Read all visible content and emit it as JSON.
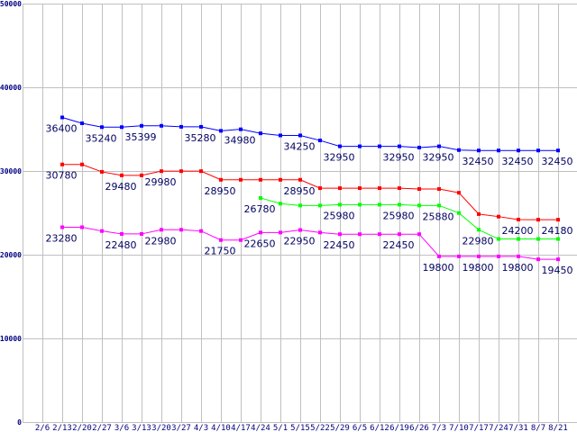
{
  "chart_data": {
    "type": "line",
    "title": "",
    "xlabel": "",
    "ylabel": "",
    "ylim": [
      0,
      50000
    ],
    "yticks": [
      "0",
      "10000",
      "20000",
      "30000",
      "40000",
      "50000"
    ],
    "ytick_values": [
      0,
      10000,
      20000,
      30000,
      40000,
      50000
    ],
    "grid": true,
    "categories": [
      "2/6",
      "2/13",
      "2/20",
      "2/27",
      "3/6",
      "3/13",
      "3/20",
      "3/27",
      "4/3",
      "4/10",
      "4/17",
      "4/24",
      "5/1",
      "5/15",
      "5/22",
      "5/29",
      "6/5",
      "6/12",
      "6/19",
      "6/26",
      "7/3",
      "7/10",
      "7/17",
      "7/24",
      "7/31",
      "8/7",
      "8/21"
    ],
    "series": [
      {
        "name": "blue",
        "color": "#0000ff",
        "values": [
          null,
          36400,
          35700,
          35240,
          35240,
          35399,
          35399,
          35280,
          35280,
          34800,
          34980,
          34500,
          34250,
          34250,
          33650,
          32950,
          32950,
          32950,
          32950,
          32800,
          32950,
          32500,
          32450,
          32450,
          32450,
          32450,
          32450
        ],
        "labels": [
          [
            1,
            "36400"
          ],
          [
            3,
            "35240"
          ],
          [
            5,
            "35399"
          ],
          [
            8,
            "35280"
          ],
          [
            10,
            "34980"
          ],
          [
            13,
            "34250"
          ],
          [
            15,
            "32950"
          ],
          [
            18,
            "32950"
          ],
          [
            20,
            "32950"
          ],
          [
            22,
            "32450"
          ],
          [
            24,
            "32450"
          ],
          [
            26,
            "32450"
          ]
        ]
      },
      {
        "name": "red",
        "color": "#ff0000",
        "values": [
          null,
          30780,
          30780,
          29900,
          29480,
          29480,
          29980,
          29980,
          29980,
          28950,
          28950,
          28950,
          28950,
          28950,
          27950,
          27950,
          27950,
          27950,
          27950,
          27850,
          27850,
          27400,
          24850,
          24550,
          24200,
          24180,
          24180
        ],
        "labels": [
          [
            1,
            "30780"
          ],
          [
            4,
            "29480"
          ],
          [
            6,
            "29980"
          ],
          [
            9,
            "28950"
          ],
          [
            13,
            "28950"
          ],
          [
            24,
            "24200"
          ],
          [
            26,
            "24180"
          ]
        ]
      },
      {
        "name": "green",
        "color": "#00ff00",
        "values": [
          null,
          null,
          null,
          null,
          null,
          null,
          null,
          null,
          null,
          null,
          null,
          26780,
          26100,
          25880,
          25880,
          25980,
          25980,
          25980,
          25980,
          25880,
          25880,
          24980,
          22980,
          21880,
          21880,
          21880,
          21880
        ],
        "labels": [
          [
            11,
            "26780"
          ],
          [
            15,
            "25980"
          ],
          [
            18,
            "25980"
          ],
          [
            20,
            "25880"
          ],
          [
            22,
            "22980"
          ]
        ]
      },
      {
        "name": "magenta",
        "color": "#ff00ff",
        "values": [
          null,
          23280,
          23280,
          22830,
          22480,
          22480,
          22980,
          22980,
          22830,
          21750,
          21750,
          22650,
          22650,
          22950,
          22650,
          22450,
          22450,
          22450,
          22450,
          22450,
          19800,
          19800,
          19800,
          19800,
          19800,
          19450,
          19450
        ],
        "labels": [
          [
            1,
            "23280"
          ],
          [
            4,
            "22480"
          ],
          [
            6,
            "22980"
          ],
          [
            9,
            "21750"
          ],
          [
            11,
            "22650"
          ],
          [
            13,
            "22950"
          ],
          [
            15,
            "22450"
          ],
          [
            18,
            "22450"
          ],
          [
            20,
            "19800"
          ],
          [
            22,
            "19800"
          ],
          [
            24,
            "19800"
          ],
          [
            26,
            "19450"
          ]
        ]
      }
    ]
  }
}
